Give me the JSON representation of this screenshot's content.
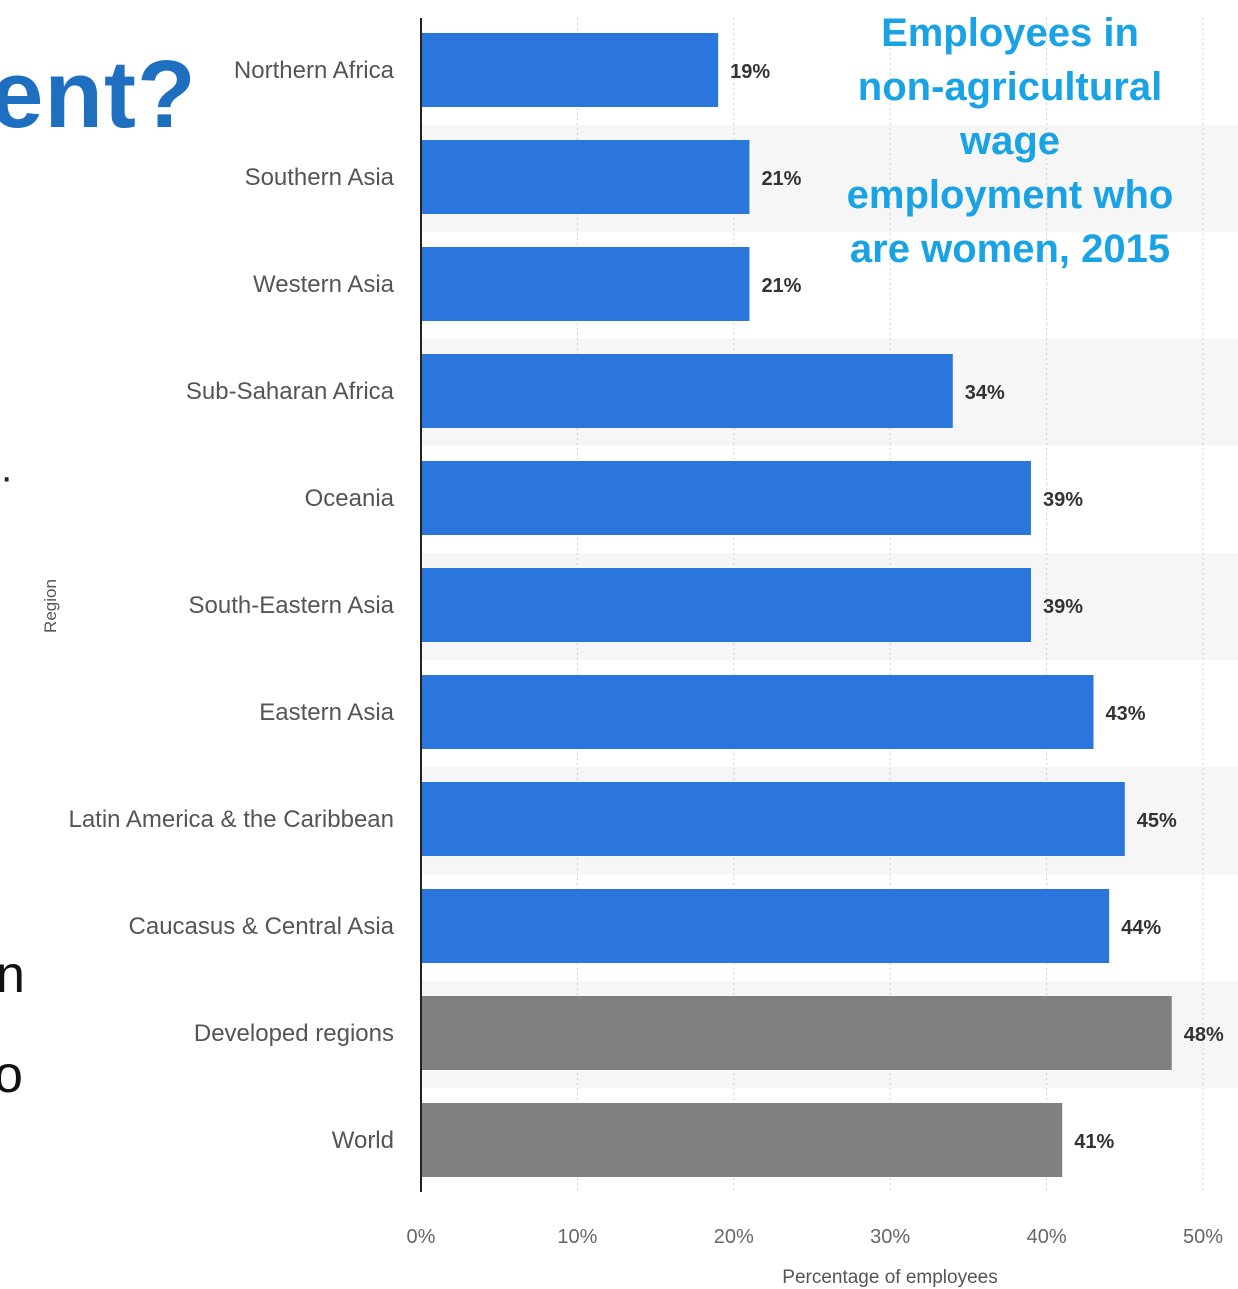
{
  "slide": {
    "title_fragment": "ent?",
    "fragment_dot": "·",
    "fragment_n": "n",
    "fragment_o": "o"
  },
  "overlay_title_lines": [
    "Employees in",
    "non-agricultural",
    "wage",
    "employment who",
    "are women, 2015"
  ],
  "chart_data": {
    "type": "bar",
    "orientation": "horizontal",
    "categories": [
      "Northern Africa",
      "Southern Asia",
      "Western Asia",
      "Sub-Saharan Africa",
      "Oceania",
      "South-Eastern Asia",
      "Eastern Asia",
      "Latin America & the Caribbean",
      "Caucasus & Central Asia",
      "Developed regions",
      "World"
    ],
    "values": [
      19,
      21,
      21,
      34,
      39,
      39,
      43,
      45,
      44,
      48,
      41
    ],
    "data_labels": [
      "19%",
      "21%",
      "21%",
      "34%",
      "39%",
      "39%",
      "43%",
      "45%",
      "44%",
      "48%",
      "41%"
    ],
    "bar_colors": [
      "#2a76dd",
      "#2a76dd",
      "#2a76dd",
      "#2a76dd",
      "#2a76dd",
      "#2a76dd",
      "#2a76dd",
      "#2a76dd",
      "#2a76dd",
      "#808080",
      "#808080"
    ],
    "xlim": [
      0,
      50
    ],
    "x_ticks": [
      "0%",
      "10%",
      "20%",
      "30%",
      "40%",
      "50%"
    ],
    "xlabel": "Percentage of employees",
    "ylabel": "Region",
    "grid": true,
    "title": ""
  }
}
